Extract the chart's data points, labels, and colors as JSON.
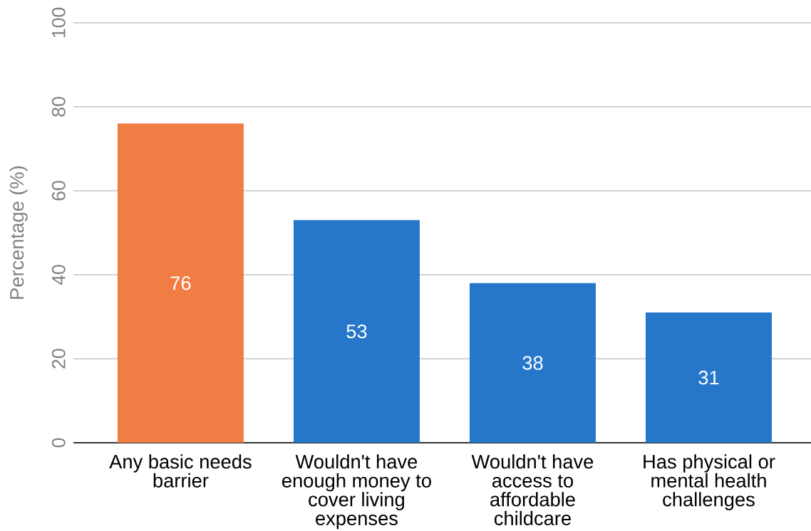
{
  "chart_data": {
    "type": "bar",
    "ylabel": "Percentage (%)",
    "categories": [
      "Any basic needs barrier",
      "Wouldn't have enough money to cover living expenses",
      "Wouldn't have access to affordable childcare",
      "Has physical or mental health challenges"
    ],
    "values": [
      76,
      53,
      38,
      31
    ],
    "colors": [
      "#f07e44",
      "#2676ca",
      "#2676ca",
      "#2676ca"
    ],
    "ylim": [
      0,
      100
    ],
    "yticks": [
      0,
      20,
      40,
      60,
      80,
      100
    ],
    "grid": "y",
    "data_labels": true
  }
}
